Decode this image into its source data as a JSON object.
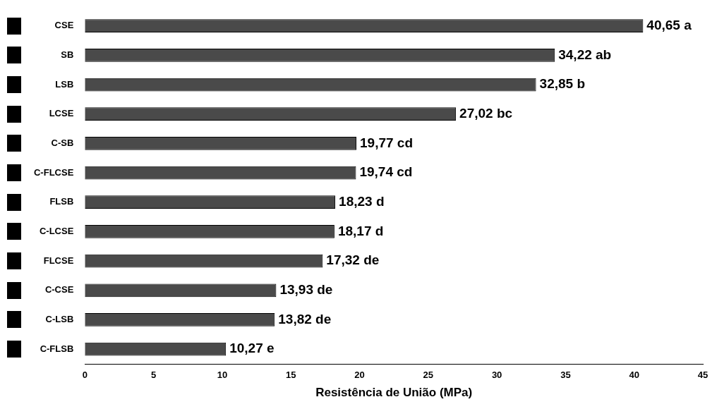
{
  "chart_data": {
    "type": "bar",
    "orientation": "horizontal",
    "xlabel": "Resistência de União (MPa)",
    "categories": [
      "CSE",
      "SB",
      "LSB",
      "LCSE",
      "C-SB",
      "C-FLCSE",
      "FLSB",
      "C-LCSE",
      "FLCSE",
      "C-CSE",
      "C-LSB",
      "C-FLSB"
    ],
    "values": [
      40.65,
      34.22,
      32.85,
      27.02,
      19.77,
      19.74,
      18.23,
      18.17,
      17.32,
      13.93,
      13.82,
      10.27
    ],
    "value_labels": [
      "40,65 a",
      "34,22 ab",
      "32,85 b",
      "27,02 bc",
      "19,77 cd",
      "19,74 cd",
      "18,23 d",
      "18,17 d",
      "17,32 de",
      "13,93 de",
      "13,82 de",
      "10,27 e"
    ],
    "color": "#4a4a4a",
    "xlim": [
      0,
      45
    ],
    "xticks": [
      0,
      5,
      10,
      15,
      20,
      25,
      30,
      35,
      40,
      45
    ],
    "grid": false,
    "legend": false
  }
}
